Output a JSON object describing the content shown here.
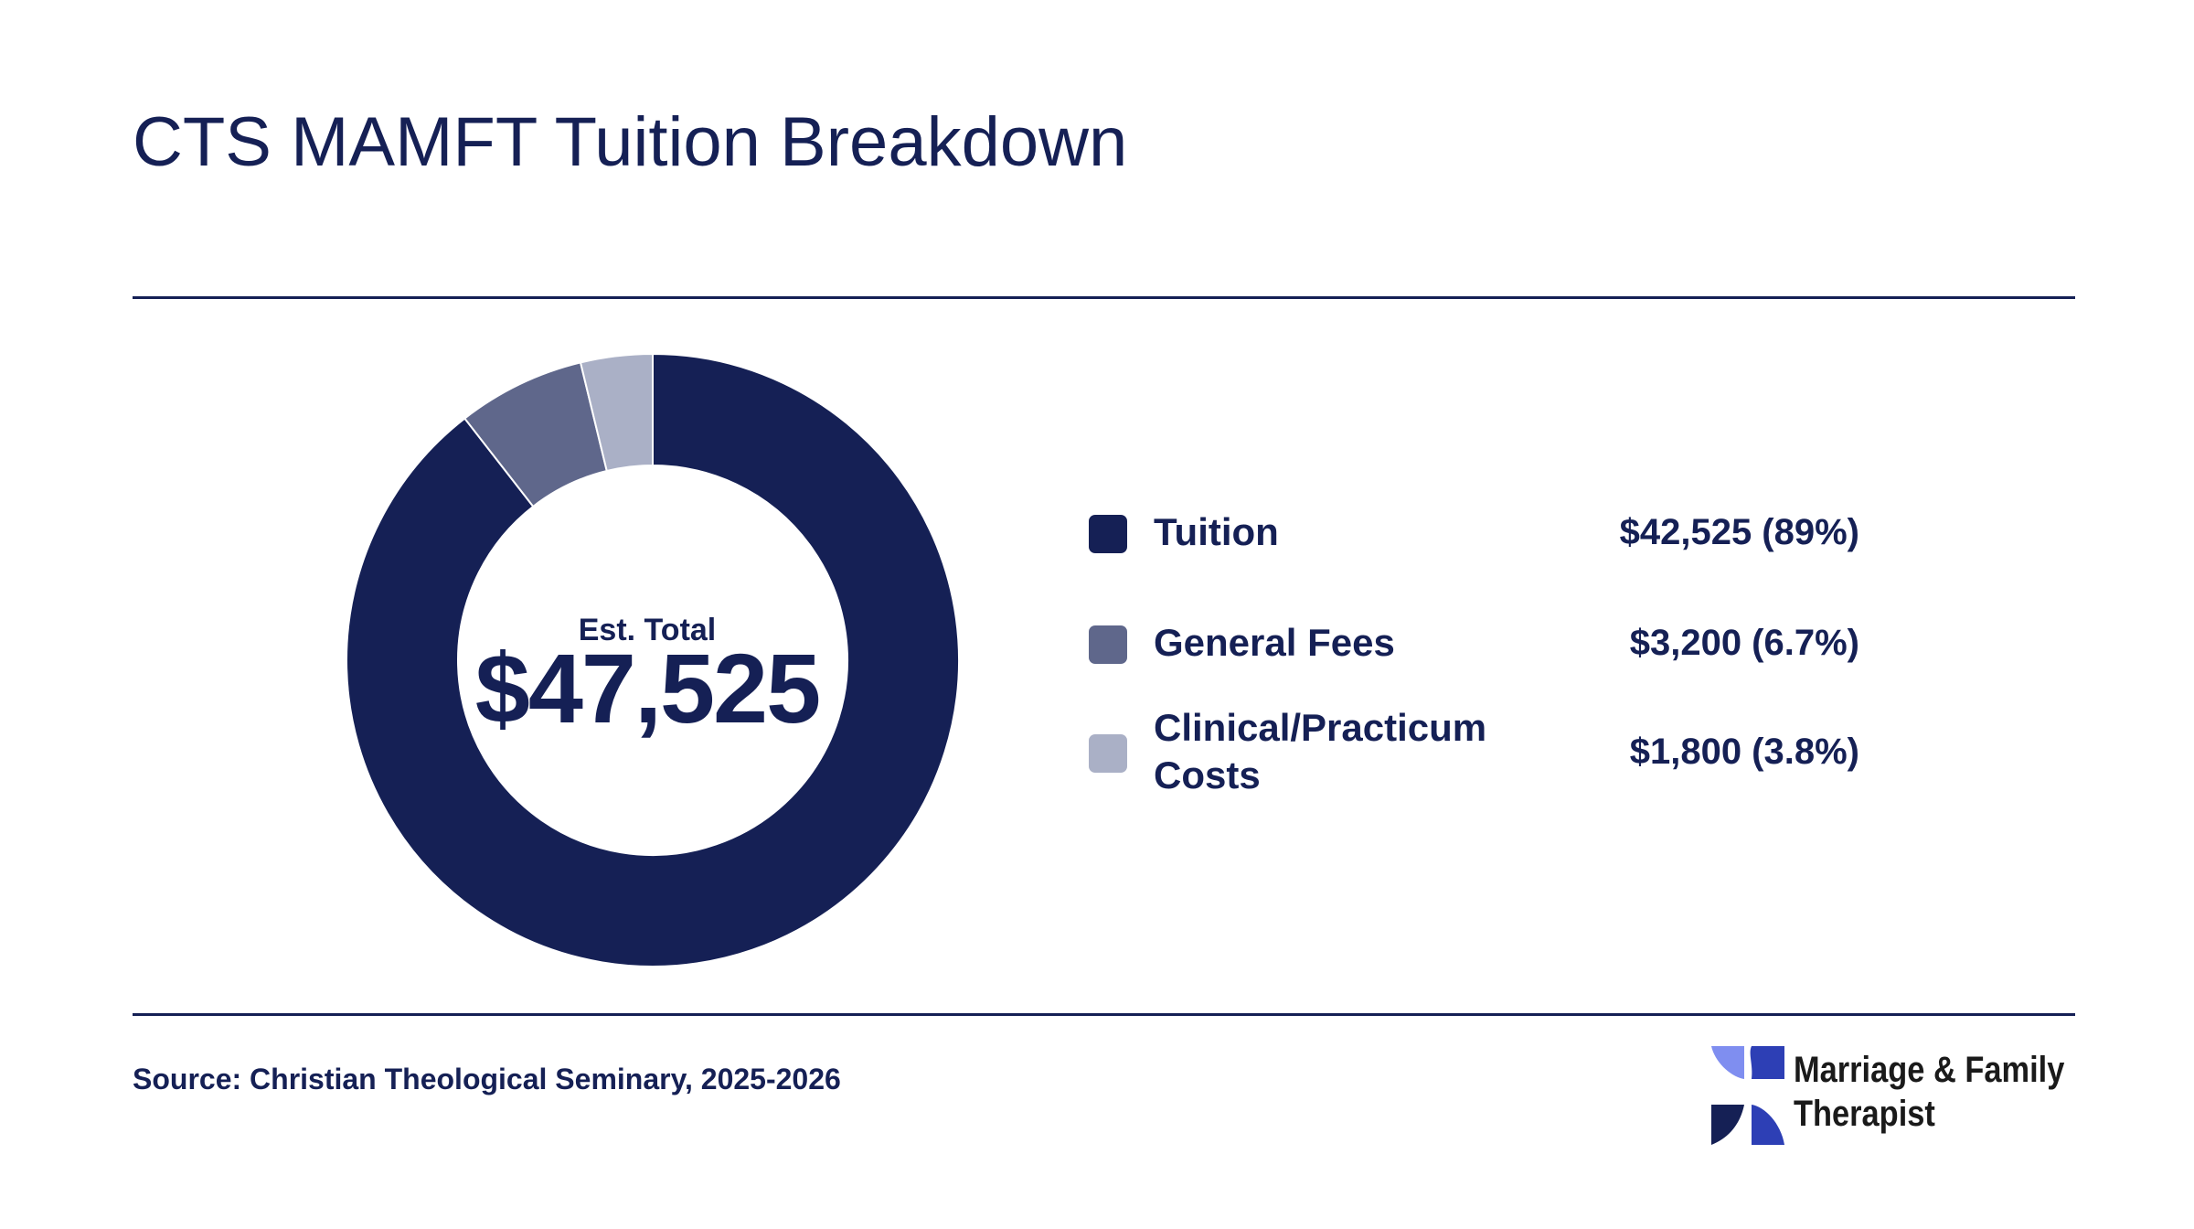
{
  "title": "CTS MAMFT Tuition Breakdown",
  "chart_data": {
    "type": "pie",
    "style": "donut",
    "title": "CTS MAMFT Tuition Breakdown",
    "center_label": "Est. Total",
    "center_value": "$47,525",
    "total": 47525,
    "slices": [
      {
        "label": "Tuition",
        "value": 42525,
        "percent": 89,
        "display_value": "$42,525 (89%)",
        "color": "#152055"
      },
      {
        "label": "General Fees",
        "value": 3200,
        "percent": 6.7,
        "display_value": "$3,200 (6.7%)",
        "color": "#5f678b"
      },
      {
        "label": "Clinical/Practicum Costs",
        "value": 1800,
        "percent": 3.8,
        "display_value": "$1,800 (3.8%)",
        "color": "#aab0c6"
      }
    ],
    "legend_position": "right"
  },
  "source": "Source: Christian Theological Seminary, 2025-2026",
  "logo": {
    "line1": "Marriage & Family",
    "line2": "Therapist",
    "colors": [
      "#7f8ef0",
      "#2d3fb5",
      "#152055"
    ]
  }
}
